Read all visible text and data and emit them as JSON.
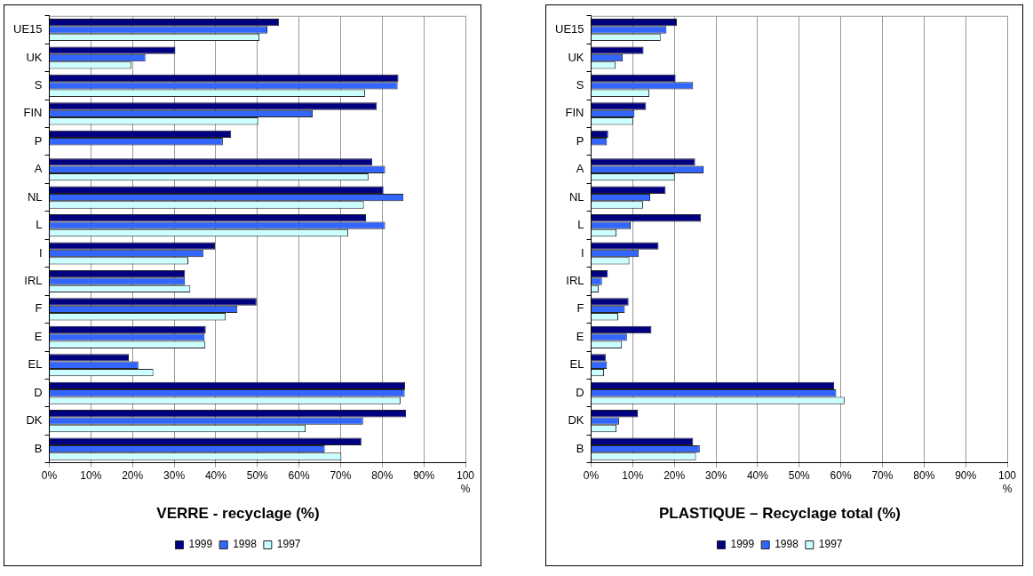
{
  "chart_data": [
    {
      "type": "bar",
      "orientation": "horizontal",
      "title": "VERRE - recyclage (%)",
      "categories": [
        "UE15",
        "UK",
        "S",
        "FIN",
        "P",
        "A",
        "NL",
        "L",
        "I",
        "IRL",
        "F",
        "E",
        "EL",
        "D",
        "DK",
        "B"
      ],
      "series": [
        {
          "name": "1999",
          "color": "#000080",
          "values": [
            55.2,
            30.3,
            83.9,
            78.7,
            43.7,
            77.6,
            80.3,
            76.1,
            39.8,
            32.6,
            49.8,
            37.6,
            19.1,
            85.5,
            85.7,
            75.0
          ]
        },
        {
          "name": "1998",
          "color": "#3366ff",
          "values": [
            52.4,
            23.1,
            83.7,
            63.3,
            41.7,
            80.7,
            85.1,
            80.7,
            37.0,
            32.6,
            45.2,
            37.3,
            21.4,
            85.4,
            75.4,
            66.2
          ]
        },
        {
          "name": "1997",
          "color": "#ccffff",
          "values": [
            50.5,
            19.7,
            75.9,
            50.2,
            null,
            76.7,
            75.6,
            71.8,
            33.4,
            33.9,
            42.4,
            37.5,
            25.0,
            84.4,
            61.6,
            70.2
          ]
        }
      ],
      "xlim": [
        0,
        100
      ],
      "xticks": [
        {
          "value": 0,
          "label": "0%"
        },
        {
          "value": 10,
          "label": "10%"
        },
        {
          "value": 20,
          "label": "20%"
        },
        {
          "value": 30,
          "label": "30%"
        },
        {
          "value": 40,
          "label": "40%"
        },
        {
          "value": 50,
          "label": "50%"
        },
        {
          "value": 60,
          "label": "60%"
        },
        {
          "value": 70,
          "label": "70%"
        },
        {
          "value": 80,
          "label": "80%"
        },
        {
          "value": 90,
          "label": "90%"
        },
        {
          "value": 100,
          "label": "100 %"
        }
      ],
      "grid": "x",
      "legend": "bottom"
    },
    {
      "type": "bar",
      "orientation": "horizontal",
      "title": "PLASTIQUE – Recyclage total (%)",
      "categories": [
        "UE15",
        "UK",
        "S",
        "FIN",
        "P",
        "A",
        "NL",
        "L",
        "I",
        "IRL",
        "F",
        "E",
        "EL",
        "D",
        "DK",
        "B"
      ],
      "series": [
        {
          "name": "1999",
          "color": "#000080",
          "values": [
            20.6,
            12.6,
            20.3,
            13.2,
            4.1,
            25.0,
            17.9,
            26.4,
            16.2,
            4.0,
            9.0,
            14.5,
            3.5,
            58.4,
            11.2,
            24.5
          ]
        },
        {
          "name": "1998",
          "color": "#3366ff",
          "values": [
            18.1,
            7.6,
            24.5,
            10.4,
            3.8,
            27.0,
            14.2,
            9.5,
            11.4,
            2.6,
            8.1,
            8.6,
            3.8,
            58.9,
            6.7,
            26.1
          ]
        },
        {
          "name": "1997",
          "color": "#ccffff",
          "values": [
            16.7,
            5.9,
            14.0,
            10.1,
            null,
            20.1,
            12.5,
            6.1,
            9.2,
            1.8,
            6.5,
            7.4,
            3.1,
            60.9,
            6.1,
            25.2
          ]
        }
      ],
      "xlim": [
        0,
        100
      ],
      "xticks": [
        {
          "value": 0,
          "label": "0%"
        },
        {
          "value": 10,
          "label": "10%"
        },
        {
          "value": 20,
          "label": "20%"
        },
        {
          "value": 30,
          "label": "30%"
        },
        {
          "value": 40,
          "label": "40%"
        },
        {
          "value": 50,
          "label": "50%"
        },
        {
          "value": 60,
          "label": "60%"
        },
        {
          "value": 70,
          "label": "70%"
        },
        {
          "value": 80,
          "label": "80%"
        },
        {
          "value": 90,
          "label": "90%"
        },
        {
          "value": 100,
          "label": "100 %"
        }
      ],
      "grid": "x",
      "legend": "bottom"
    }
  ]
}
